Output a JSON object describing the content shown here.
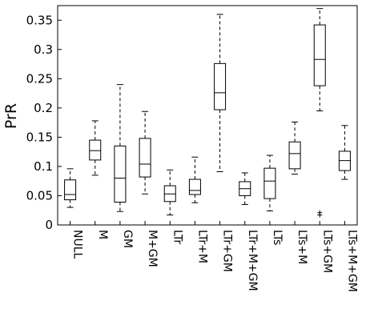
{
  "chart_data": {
    "type": "box",
    "title": "",
    "xlabel": "",
    "ylabel": "PrR",
    "ylim": [
      0,
      0.375
    ],
    "yticks": [
      0,
      0.05,
      0.1,
      0.15,
      0.2,
      0.25,
      0.3,
      0.35
    ],
    "ytick_labels": [
      "0",
      "0.05",
      "0.1",
      "0.15",
      "0.2",
      "0.25",
      "0.3",
      "0.35"
    ],
    "grid": false,
    "legend": "none",
    "categories": [
      "NULL",
      "M",
      "GM",
      "M+GM",
      "LTr",
      "LTr+M",
      "LTr+GM",
      "LTr+M+GM",
      "LTs",
      "LTs+M",
      "LTs+GM",
      "LTs+M+GM"
    ],
    "boxes": [
      {
        "whisker_low": 0.03,
        "q1": 0.043,
        "median": 0.052,
        "q3": 0.077,
        "whisker_high": 0.096,
        "outliers": []
      },
      {
        "whisker_low": 0.085,
        "q1": 0.111,
        "median": 0.127,
        "q3": 0.145,
        "whisker_high": 0.178,
        "outliers": []
      },
      {
        "whisker_low": 0.023,
        "q1": 0.039,
        "median": 0.08,
        "q3": 0.135,
        "whisker_high": 0.24,
        "outliers": []
      },
      {
        "whisker_low": 0.053,
        "q1": 0.082,
        "median": 0.104,
        "q3": 0.148,
        "whisker_high": 0.194,
        "outliers": []
      },
      {
        "whisker_low": 0.017,
        "q1": 0.04,
        "median": 0.053,
        "q3": 0.067,
        "whisker_high": 0.094,
        "outliers": []
      },
      {
        "whisker_low": 0.038,
        "q1": 0.052,
        "median": 0.059,
        "q3": 0.078,
        "whisker_high": 0.116,
        "outliers": []
      },
      {
        "whisker_low": 0.091,
        "q1": 0.197,
        "median": 0.226,
        "q3": 0.276,
        "whisker_high": 0.36,
        "outliers": []
      },
      {
        "whisker_low": 0.035,
        "q1": 0.05,
        "median": 0.062,
        "q3": 0.074,
        "whisker_high": 0.089,
        "outliers": []
      },
      {
        "whisker_low": 0.024,
        "q1": 0.045,
        "median": 0.075,
        "q3": 0.097,
        "whisker_high": 0.119,
        "outliers": []
      },
      {
        "whisker_low": 0.087,
        "q1": 0.096,
        "median": 0.122,
        "q3": 0.142,
        "whisker_high": 0.176,
        "outliers": []
      },
      {
        "whisker_low": 0.195,
        "q1": 0.238,
        "median": 0.283,
        "q3": 0.342,
        "whisker_high": 0.37,
        "outliers": [
          0.017,
          0.021
        ]
      },
      {
        "whisker_low": 0.078,
        "q1": 0.093,
        "median": 0.11,
        "q3": 0.126,
        "whisker_high": 0.17,
        "outliers": []
      }
    ]
  }
}
